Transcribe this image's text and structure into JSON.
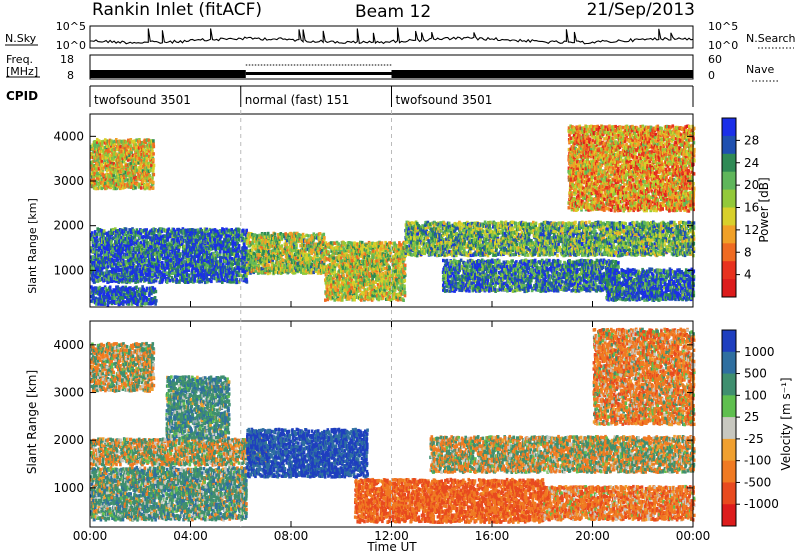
{
  "header": {
    "title": "Rankin Inlet (fitACF)",
    "beam": "Beam 12",
    "date": "21/Sep/2013"
  },
  "noise_panel": {
    "left_label": "N.Sky",
    "right_label": "N.Search",
    "left_ticks": [
      "10^5",
      "10^0"
    ],
    "right_ticks": [
      "10^5",
      "10^0"
    ]
  },
  "freq_panel": {
    "left_label_line1": "Freq.",
    "left_label_line2": "[MHz]",
    "right_label": "Nave",
    "left_ticks": [
      "18",
      "8"
    ],
    "right_ticks": [
      "60",
      "0"
    ]
  },
  "cpid_panel": {
    "label": "CPID",
    "segments": [
      {
        "name": "twofsound 3501",
        "start_hour": 0,
        "end_hour": 6
      },
      {
        "name": "normal (fast) 151",
        "start_hour": 6,
        "end_hour": 12
      },
      {
        "name": "twofsound 3501",
        "start_hour": 12,
        "end_hour": 24
      }
    ]
  },
  "x_axis": {
    "label": "Time UT",
    "ticks": [
      "00:00",
      "04:00",
      "08:00",
      "12:00",
      "16:00",
      "20:00",
      "00:00"
    ]
  },
  "power_panel": {
    "ylabel": "Slant Range [km]",
    "yticks": [
      "1000",
      "2000",
      "3000",
      "4000"
    ],
    "colorbar_label": "Power [dB]",
    "colorbar_ticks": [
      "4",
      "8",
      "12",
      "16",
      "20",
      "24",
      "28"
    ],
    "colorbar_colors": [
      "#1b2fe8",
      "#1f50b0",
      "#2f8a55",
      "#5fb65b",
      "#93c93a",
      "#d8d02b",
      "#f0a027",
      "#ef6b22",
      "#e8321f",
      "#dd1c1c"
    ]
  },
  "velocity_panel": {
    "ylabel": "Slant Range [km]",
    "yticks": [
      "1000",
      "2000",
      "3000",
      "4000"
    ],
    "colorbar_label": "Velocity [m s⁻¹]",
    "colorbar_ticks": [
      "1000",
      "500",
      "100",
      "25",
      "-25",
      "-100",
      "-500",
      "-1000"
    ],
    "colorbar_colors": [
      "#1f3fbf",
      "#2f6fa0",
      "#3f8f6f",
      "#5fbf4f",
      "#c8c8c0",
      "#f0a030",
      "#f07a22",
      "#e84a1f",
      "#dd1c1c"
    ]
  },
  "chart_data": [
    {
      "type": "heatmap",
      "name": "power",
      "x_range_hours": [
        0,
        24
      ],
      "y_range_km": [
        180,
        4500
      ],
      "color_range_db": [
        0,
        30
      ],
      "bands": [
        {
          "t0": 0,
          "t1": 6.2,
          "r0": 700,
          "r1": 1900,
          "level": 0.85
        },
        {
          "t0": 0,
          "t1": 2.6,
          "r0": 200,
          "r1": 600,
          "level": 0.9
        },
        {
          "t0": 6.2,
          "t1": 9.3,
          "r0": 900,
          "r1": 1800,
          "level": 0.55
        },
        {
          "t0": 9.3,
          "t1": 12.5,
          "r0": 300,
          "r1": 1600,
          "level": 0.5
        },
        {
          "t0": 12.5,
          "t1": 24,
          "r0": 1300,
          "r1": 2050,
          "level": 0.65
        },
        {
          "t0": 14,
          "t1": 21,
          "r0": 500,
          "r1": 1200,
          "level": 0.8
        },
        {
          "t0": 20.5,
          "t1": 24,
          "r0": 300,
          "r1": 1000,
          "level": 0.85
        },
        {
          "t0": 0,
          "t1": 2.5,
          "r0": 2800,
          "r1": 3900,
          "level": 0.45
        },
        {
          "t0": 19,
          "t1": 24,
          "r0": 2300,
          "r1": 4200,
          "level": 0.35
        }
      ]
    },
    {
      "type": "heatmap",
      "name": "velocity",
      "x_range_hours": [
        0,
        24
      ],
      "y_range_km": [
        180,
        4500
      ],
      "color_range_ms": [
        -1000,
        1000
      ],
      "bands": [
        {
          "t0": 0,
          "t1": 7.0,
          "r0": 1450,
          "r1": 2000,
          "v": 0
        },
        {
          "t0": 13.5,
          "t1": 24,
          "r0": 1300,
          "r1": 2050,
          "v": 0
        },
        {
          "t0": 0,
          "t1": 6.2,
          "r0": 300,
          "r1": 1400,
          "v": 150
        },
        {
          "t0": 6.2,
          "t1": 11.0,
          "r0": 1200,
          "r1": 2200,
          "v": 800
        },
        {
          "t0": 10.5,
          "t1": 18.0,
          "r0": 250,
          "r1": 1150,
          "v": -300
        },
        {
          "t0": 18.0,
          "t1": 24,
          "r0": 300,
          "r1": 1000,
          "v": -200
        },
        {
          "t0": 0,
          "t1": 2.5,
          "r0": 3000,
          "r1": 4000,
          "v": 0
        },
        {
          "t0": 3,
          "t1": 5.5,
          "r0": 2000,
          "r1": 3300,
          "v": 200
        },
        {
          "t0": 20,
          "t1": 24,
          "r0": 2300,
          "r1": 4300,
          "v": -150
        }
      ]
    }
  ]
}
